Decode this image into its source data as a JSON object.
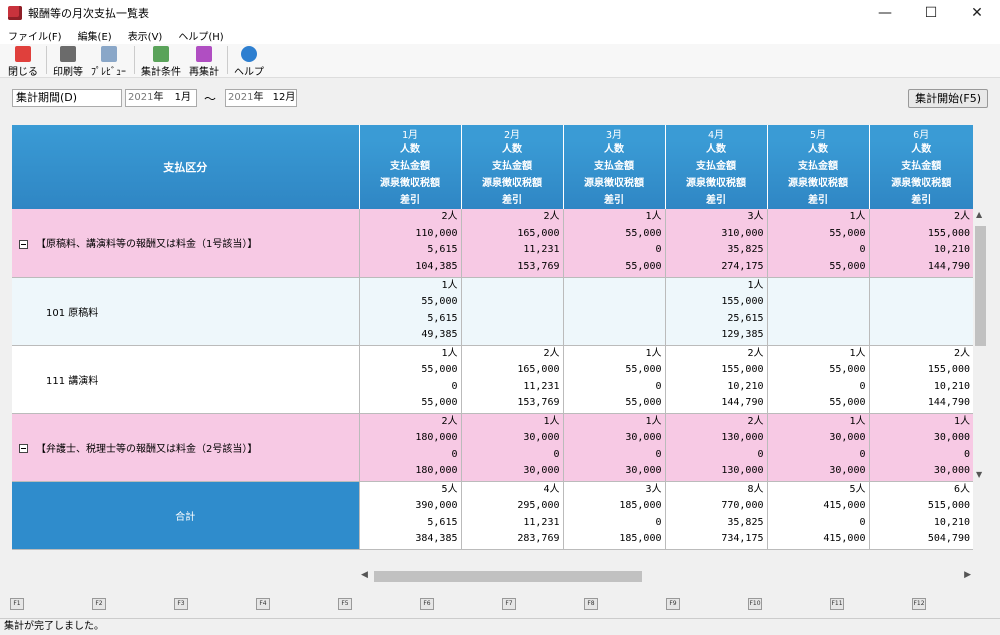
{
  "window": {
    "title": "報酬等の月次支払一覧表",
    "minimize": "—",
    "maximize": "☐",
    "close": "✕"
  },
  "menu": [
    "ファイル(F)",
    "編集(E)",
    "表示(V)",
    "ヘルプ(H)"
  ],
  "toolbar": [
    {
      "label": "閉じる",
      "icon": "close-icon",
      "color": "#e0403c"
    },
    {
      "label": "印刷等",
      "icon": "print-icon",
      "color": "#6b6b6b"
    },
    {
      "label": "ﾌﾟﾚﾋﾞｭｰ",
      "icon": "preview-icon",
      "color": "#8aa7c8"
    },
    {
      "label": "集計条件",
      "icon": "conditions-icon",
      "color": "#5aa35a"
    },
    {
      "label": "再集計",
      "icon": "recalculate-icon",
      "color": "#b04ec2"
    },
    {
      "label": "ヘルプ",
      "icon": "help-icon",
      "color": "#2e7fd0"
    }
  ],
  "period": {
    "label": "集計期間(D)",
    "from_year": "2021",
    "from_year_suffix": "年",
    "from_month": "1月",
    "tilde": "～",
    "to_year": "2021",
    "to_year_suffix": "年",
    "to_month": "12月"
  },
  "start_button": "集計開始(F5)",
  "grid": {
    "category_header": "支払区分",
    "months": [
      "1月",
      "2月",
      "3月",
      "4月",
      "5月",
      "6月"
    ],
    "sub_headers": [
      "人数",
      "支払金額",
      "源泉徴収税額",
      "差引"
    ],
    "rows": [
      {
        "style": "pink",
        "expander": true,
        "indent": false,
        "label": "【原稿料、講演料等の報酬又は料金（1号該当）】",
        "cells": [
          [
            "2人",
            "110,000",
            "5,615",
            "104,385"
          ],
          [
            "2人",
            "165,000",
            "11,231",
            "153,769"
          ],
          [
            "1人",
            "55,000",
            "0",
            "55,000"
          ],
          [
            "3人",
            "310,000",
            "35,825",
            "274,175"
          ],
          [
            "1人",
            "55,000",
            "0",
            "55,000"
          ],
          [
            "2人",
            "155,000",
            "10,210",
            "144,790"
          ]
        ]
      },
      {
        "style": "light",
        "expander": false,
        "indent": true,
        "label": "101  原稿料",
        "cells": [
          [
            "1人",
            "55,000",
            "5,615",
            "49,385"
          ],
          [
            "",
            "",
            "",
            ""
          ],
          [
            "",
            "",
            "",
            ""
          ],
          [
            "1人",
            "155,000",
            "25,615",
            "129,385"
          ],
          [
            "",
            "",
            "",
            ""
          ],
          [
            "",
            "",
            "",
            ""
          ]
        ]
      },
      {
        "style": "white",
        "expander": false,
        "indent": true,
        "label": "111  講演料",
        "cells": [
          [
            "1人",
            "55,000",
            "0",
            "55,000"
          ],
          [
            "2人",
            "165,000",
            "11,231",
            "153,769"
          ],
          [
            "1人",
            "55,000",
            "0",
            "55,000"
          ],
          [
            "2人",
            "155,000",
            "10,210",
            "144,790"
          ],
          [
            "1人",
            "55,000",
            "0",
            "55,000"
          ],
          [
            "2人",
            "155,000",
            "10,210",
            "144,790"
          ]
        ]
      },
      {
        "style": "pink",
        "expander": true,
        "indent": false,
        "label": "【弁護士、税理士等の報酬又は料金（2号該当）】",
        "cells": [
          [
            "2人",
            "180,000",
            "0",
            "180,000"
          ],
          [
            "1人",
            "30,000",
            "0",
            "30,000"
          ],
          [
            "1人",
            "30,000",
            "0",
            "30,000"
          ],
          [
            "2人",
            "130,000",
            "0",
            "130,000"
          ],
          [
            "1人",
            "30,000",
            "0",
            "30,000"
          ],
          [
            "1人",
            "30,000",
            "0",
            "30,000"
          ]
        ]
      }
    ],
    "total": {
      "label": "合計",
      "cells": [
        [
          "5人",
          "390,000",
          "5,615",
          "384,385"
        ],
        [
          "4人",
          "295,000",
          "11,231",
          "283,769"
        ],
        [
          "3人",
          "185,000",
          "0",
          "185,000"
        ],
        [
          "8人",
          "770,000",
          "35,825",
          "734,175"
        ],
        [
          "5人",
          "415,000",
          "0",
          "415,000"
        ],
        [
          "6人",
          "515,000",
          "10,210",
          "504,790"
        ]
      ]
    }
  },
  "fkeys": [
    "F1",
    "F2",
    "F3",
    "F4",
    "F5",
    "F6",
    "F7",
    "F8",
    "F9",
    "F10",
    "F11",
    "F12"
  ],
  "status": "集計が完了しました。"
}
